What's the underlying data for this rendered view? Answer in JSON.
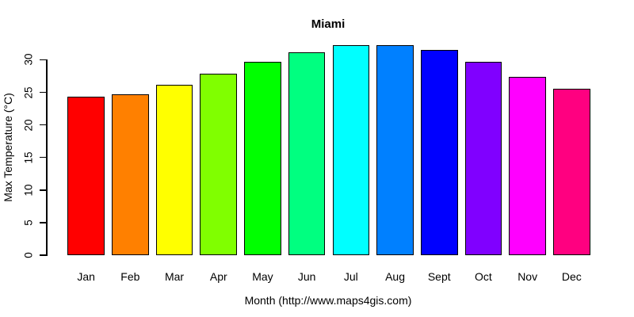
{
  "title": "Miami",
  "chart_data": {
    "type": "bar",
    "title": "Miami",
    "xlabel": "Month (http://www.maps4gis.com)",
    "ylabel": "Max Temperature (°C)",
    "categories": [
      "Jan",
      "Feb",
      "Mar",
      "Apr",
      "May",
      "Jun",
      "Jul",
      "Aug",
      "Sept",
      "Oct",
      "Nov",
      "Dec"
    ],
    "values": [
      24.3,
      24.7,
      26.2,
      27.9,
      29.7,
      31.2,
      32.2,
      32.3,
      31.5,
      29.7,
      27.4,
      25.6
    ],
    "bar_colors": [
      "#FF0000",
      "#FF8000",
      "#FFFF00",
      "#80FF00",
      "#00FF00",
      "#00FF80",
      "#00FFFF",
      "#0080FF",
      "#0000FF",
      "#8000FF",
      "#FF00FF",
      "#FF0080"
    ],
    "bar_border_color": "#000000",
    "ylim": [
      0,
      33
    ],
    "yticks": [
      0,
      5,
      10,
      15,
      20,
      25,
      30
    ],
    "grid": false,
    "legend": false,
    "background": "#FFFFFF",
    "axis_color": "#000000",
    "text_color": "#000000"
  }
}
